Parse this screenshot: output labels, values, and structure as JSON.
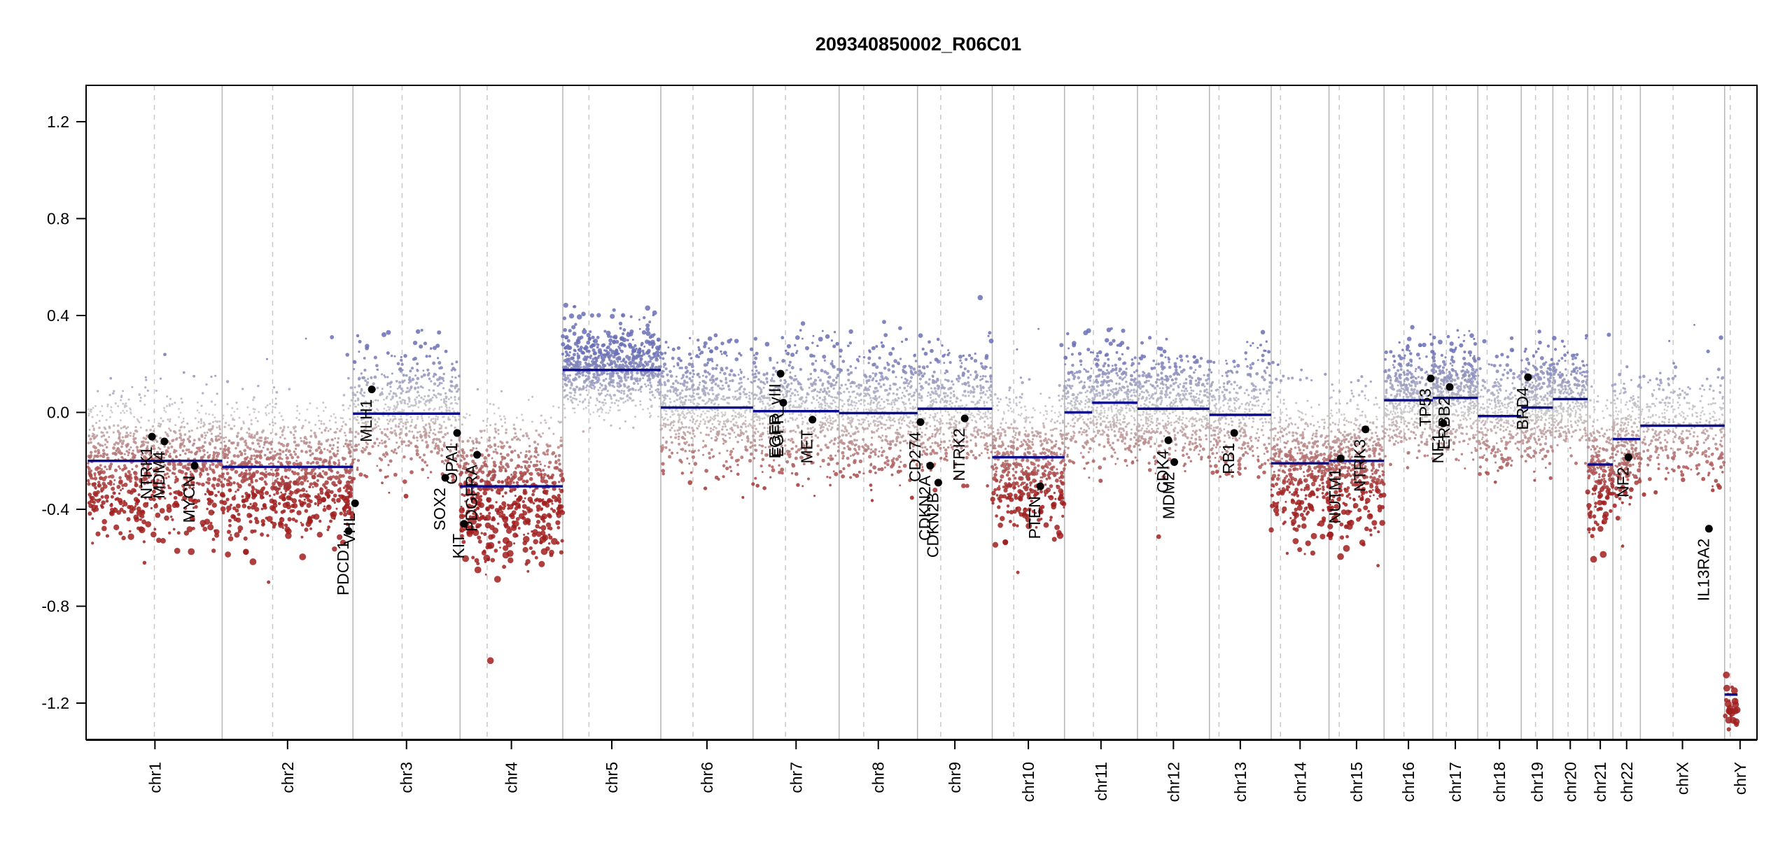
{
  "chart_data": {
    "type": "scatter",
    "title": "209340850002_R06C01",
    "xlabel": "",
    "ylabel": "",
    "ylim": [
      -1.35,
      1.35
    ],
    "yticks": [
      1.2,
      0.8,
      0.4,
      0.0,
      -0.4,
      -0.8,
      -1.2
    ],
    "ytick_labels": [
      "1.2",
      "0.8",
      "0.4",
      "0.0",
      "-0.4",
      "-0.8",
      "-1.2"
    ],
    "grid": false,
    "colors": {
      "gain": "#6a6fb5",
      "loss": "#a01e1e",
      "neutral": "#c8c8c8",
      "segment": "#0a0a8c",
      "chrom_line": "#b5b5b5",
      "centromere_line": "#c8c8c8",
      "gene_point": "#000000"
    },
    "chromosomes": [
      {
        "name": "chr1",
        "start": 0.0,
        "end": 248.96,
        "centromere": 123.4
      },
      {
        "name": "chr2",
        "start": 248.96,
        "end": 491.15,
        "centromere": 342.36
      },
      {
        "name": "chr3",
        "start": 491.15,
        "end": 689.45,
        "centromere": 582.15
      },
      {
        "name": "chr4",
        "start": 689.45,
        "end": 879.66,
        "centromere": 739.65
      },
      {
        "name": "chr5",
        "start": 879.66,
        "end": 1061.2,
        "centromere": 928.16
      },
      {
        "name": "chr6",
        "start": 1061.2,
        "end": 1232.01,
        "centromere": 1120.7
      },
      {
        "name": "chr7",
        "start": 1232.01,
        "end": 1391.36,
        "centromere": 1292.11
      },
      {
        "name": "chr8",
        "start": 1391.36,
        "end": 1536.5,
        "centromere": 1436.96
      },
      {
        "name": "chr9",
        "start": 1536.5,
        "end": 1674.9,
        "centromere": 1579.5
      },
      {
        "name": "chr10",
        "start": 1674.9,
        "end": 1808.7,
        "centromere": 1714.7
      },
      {
        "name": "chr11",
        "start": 1808.7,
        "end": 1943.78,
        "centromere": 1862.3
      },
      {
        "name": "chr12",
        "start": 1943.78,
        "end": 2077.05,
        "centromere": 1979.28
      },
      {
        "name": "chr13",
        "start": 2077.05,
        "end": 2191.42,
        "centromere": 2094.75
      },
      {
        "name": "chr14",
        "start": 2191.42,
        "end": 2298.46,
        "centromere": 2208.62
      },
      {
        "name": "chr15",
        "start": 2298.46,
        "end": 2400.45,
        "centromere": 2317.46
      },
      {
        "name": "chr16",
        "start": 2400.45,
        "end": 2490.79,
        "centromere": 2437.25
      },
      {
        "name": "chr17",
        "start": 2490.79,
        "end": 2574.05,
        "centromere": 2515.79
      },
      {
        "name": "chr18",
        "start": 2574.05,
        "end": 2654.42,
        "centromere": 2591.25
      },
      {
        "name": "chr19",
        "start": 2654.42,
        "end": 2713.03,
        "centromere": 2680.92
      },
      {
        "name": "chr20",
        "start": 2713.03,
        "end": 2777.48,
        "centromere": 2741.13
      },
      {
        "name": "chr21",
        "start": 2777.48,
        "end": 2824.19,
        "centromere": 2789.48
      },
      {
        "name": "chr22",
        "start": 2824.19,
        "end": 2875.0,
        "centromere": 2839.19
      },
      {
        "name": "chrX",
        "start": 2875.0,
        "end": 3031.04,
        "centromere": 2935.6
      },
      {
        "name": "chrY",
        "start": 3031.04,
        "end": 3088.27,
        "centromere": 3041.44
      }
    ],
    "x_domain": [
      -3,
      3091
    ],
    "segments": [
      {
        "x1": 0.0,
        "x2": 248.96,
        "y": -0.2
      },
      {
        "x1": 248.96,
        "x2": 491.15,
        "y": -0.225
      },
      {
        "x1": 491.15,
        "x2": 689.45,
        "y": -0.005
      },
      {
        "x1": 689.45,
        "x2": 879.66,
        "y": -0.305
      },
      {
        "x1": 879.66,
        "x2": 1061.2,
        "y": 0.175
      },
      {
        "x1": 1061.2,
        "x2": 1232.01,
        "y": 0.02
      },
      {
        "x1": 1232.01,
        "x2": 1391.36,
        "y": 0.005
      },
      {
        "x1": 1391.36,
        "x2": 1536.5,
        "y": -0.003
      },
      {
        "x1": 1536.5,
        "x2": 1674.9,
        "y": 0.015
      },
      {
        "x1": 1674.9,
        "x2": 1808.7,
        "y": -0.185
      },
      {
        "x1": 1808.7,
        "x2": 1860.0,
        "y": 0.0
      },
      {
        "x1": 1860.0,
        "x2": 1943.78,
        "y": 0.04
      },
      {
        "x1": 1943.78,
        "x2": 2077.05,
        "y": 0.015
      },
      {
        "x1": 2077.05,
        "x2": 2191.42,
        "y": -0.01
      },
      {
        "x1": 2191.42,
        "x2": 2298.46,
        "y": -0.21
      },
      {
        "x1": 2298.46,
        "x2": 2400.45,
        "y": -0.2
      },
      {
        "x1": 2400.45,
        "x2": 2490.79,
        "y": 0.05
      },
      {
        "x1": 2490.79,
        "x2": 2574.05,
        "y": 0.06
      },
      {
        "x1": 2574.05,
        "x2": 2654.42,
        "y": -0.015
      },
      {
        "x1": 2654.42,
        "x2": 2713.03,
        "y": 0.02
      },
      {
        "x1": 2713.03,
        "x2": 2777.48,
        "y": 0.055
      },
      {
        "x1": 2777.48,
        "x2": 2824.19,
        "y": -0.215
      },
      {
        "x1": 2824.19,
        "x2": 2875.0,
        "y": -0.11
      },
      {
        "x1": 2875.0,
        "x2": 3031.04,
        "y": -0.055
      },
      {
        "x1": 3031.04,
        "x2": 3055.0,
        "y": -1.165
      }
    ],
    "noise": [
      {
        "x1": 0.0,
        "x2": 248.96,
        "y": -0.2,
        "sd": 0.14,
        "n": 900
      },
      {
        "x1": 248.96,
        "x2": 491.15,
        "y": -0.225,
        "sd": 0.14,
        "n": 900
      },
      {
        "x1": 491.15,
        "x2": 689.45,
        "y": -0.005,
        "sd": 0.12,
        "n": 700
      },
      {
        "x1": 689.45,
        "x2": 879.66,
        "y": -0.305,
        "sd": 0.15,
        "n": 700
      },
      {
        "x1": 879.66,
        "x2": 1061.2,
        "y": 0.175,
        "sd": 0.09,
        "n": 800
      },
      {
        "x1": 1061.2,
        "x2": 1232.01,
        "y": 0.02,
        "sd": 0.12,
        "n": 700
      },
      {
        "x1": 1232.01,
        "x2": 1391.36,
        "y": 0.005,
        "sd": 0.12,
        "n": 650
      },
      {
        "x1": 1391.36,
        "x2": 1536.5,
        "y": -0.003,
        "sd": 0.12,
        "n": 600
      },
      {
        "x1": 1536.5,
        "x2": 1674.9,
        "y": 0.015,
        "sd": 0.12,
        "n": 550
      },
      {
        "x1": 1674.9,
        "x2": 1808.7,
        "y": -0.185,
        "sd": 0.14,
        "n": 550
      },
      {
        "x1": 1808.7,
        "x2": 1943.78,
        "y": 0.03,
        "sd": 0.11,
        "n": 650
      },
      {
        "x1": 1943.78,
        "x2": 2077.05,
        "y": 0.015,
        "sd": 0.11,
        "n": 600
      },
      {
        "x1": 2077.05,
        "x2": 2191.42,
        "y": -0.01,
        "sd": 0.12,
        "n": 400
      },
      {
        "x1": 2191.42,
        "x2": 2298.46,
        "y": -0.21,
        "sd": 0.14,
        "n": 450
      },
      {
        "x1": 2298.46,
        "x2": 2400.45,
        "y": -0.2,
        "sd": 0.14,
        "n": 450
      },
      {
        "x1": 2400.45,
        "x2": 2490.79,
        "y": 0.05,
        "sd": 0.1,
        "n": 450
      },
      {
        "x1": 2490.79,
        "x2": 2574.05,
        "y": 0.06,
        "sd": 0.1,
        "n": 500
      },
      {
        "x1": 2574.05,
        "x2": 2654.42,
        "y": -0.015,
        "sd": 0.11,
        "n": 300
      },
      {
        "x1": 2654.42,
        "x2": 2713.03,
        "y": 0.02,
        "sd": 0.1,
        "n": 350
      },
      {
        "x1": 2713.03,
        "x2": 2777.48,
        "y": 0.055,
        "sd": 0.1,
        "n": 300
      },
      {
        "x1": 2777.48,
        "x2": 2824.19,
        "y": -0.215,
        "sd": 0.14,
        "n": 200
      },
      {
        "x1": 2824.19,
        "x2": 2875.0,
        "y": -0.11,
        "sd": 0.13,
        "n": 250
      },
      {
        "x1": 2875.0,
        "x2": 3031.04,
        "y": -0.055,
        "sd": 0.11,
        "n": 400
      },
      {
        "x1": 3031.04,
        "x2": 3055.0,
        "y": -1.2,
        "sd": 0.05,
        "n": 25
      }
    ],
    "genes": [
      {
        "name": "NTRK1",
        "x": 119.0,
        "y": -0.1
      },
      {
        "name": "MDM4",
        "x": 142.0,
        "y": -0.12
      },
      {
        "name": "MYCN",
        "x": 198.0,
        "y": -0.22
      },
      {
        "name": "PDCD1",
        "x": 483.0,
        "y": -0.49
      },
      {
        "name": "VHL",
        "x": 495.0,
        "y": -0.375
      },
      {
        "name": "MLH1",
        "x": 526.0,
        "y": 0.095
      },
      {
        "name": "SOX2",
        "x": 662.0,
        "y": -0.27
      },
      {
        "name": "OPA1",
        "x": 684.0,
        "y": -0.085
      },
      {
        "name": "KIT",
        "x": 697.0,
        "y": -0.46
      },
      {
        "name": "PDGFRA",
        "x": 721.0,
        "y": -0.175
      },
      {
        "name": "EGFR",
        "x": 1288.0,
        "y": 0.04
      },
      {
        "name": "EGFR_vIII",
        "x": 1283.0,
        "y": 0.16
      },
      {
        "name": "MET",
        "x": 1342.0,
        "y": -0.03
      },
      {
        "name": "CDKN2A",
        "x": 1560.0,
        "y": -0.22
      },
      {
        "name": "CDKN2B",
        "x": 1575.0,
        "y": -0.29
      },
      {
        "name": "CD274",
        "x": 1542.0,
        "y": -0.04
      },
      {
        "name": "NTRK2",
        "x": 1624.0,
        "y": -0.025
      },
      {
        "name": "PTEN",
        "x": 1764.0,
        "y": -0.305
      },
      {
        "name": "CDK4",
        "x": 2001.0,
        "y": -0.115
      },
      {
        "name": "MDM2",
        "x": 2012.0,
        "y": -0.205
      },
      {
        "name": "RB1",
        "x": 2123.0,
        "y": -0.085
      },
      {
        "name": "NUTM1",
        "x": 2320.0,
        "y": -0.19
      },
      {
        "name": "NTRK3",
        "x": 2366.0,
        "y": -0.07
      },
      {
        "name": "TP53",
        "x": 2487.0,
        "y": 0.14
      },
      {
        "name": "ERBB2",
        "x": 2522.0,
        "y": 0.105
      },
      {
        "name": "NF1",
        "x": 2510.0,
        "y": -0.045
      },
      {
        "name": "BRD4",
        "x": 2667.0,
        "y": 0.145
      },
      {
        "name": "NF2",
        "x": 2853.0,
        "y": -0.185
      },
      {
        "name": "IL13RA2",
        "x": 3002.0,
        "y": -0.48
      }
    ]
  }
}
